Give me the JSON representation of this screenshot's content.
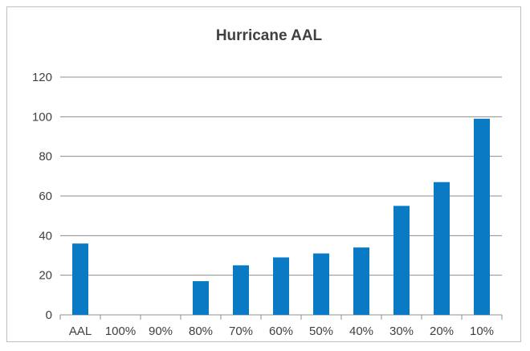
{
  "chart_data": {
    "type": "bar",
    "title": "Hurricane AAL",
    "xlabel": "",
    "ylabel": "",
    "categories": [
      "AAL",
      "100%",
      "90%",
      "80%",
      "70%",
      "60%",
      "50%",
      "40%",
      "30%",
      "20%",
      "10%"
    ],
    "values": [
      36,
      0,
      0,
      17,
      25,
      29,
      31,
      34,
      55,
      67,
      99
    ],
    "ylim": [
      0,
      120
    ],
    "yticks": [
      "0",
      "20",
      "40",
      "60",
      "80",
      "100",
      "120"
    ],
    "grid": true,
    "legend": "none",
    "bar_color": "#0a7ac4",
    "grid_color": "#8c8c8c"
  }
}
